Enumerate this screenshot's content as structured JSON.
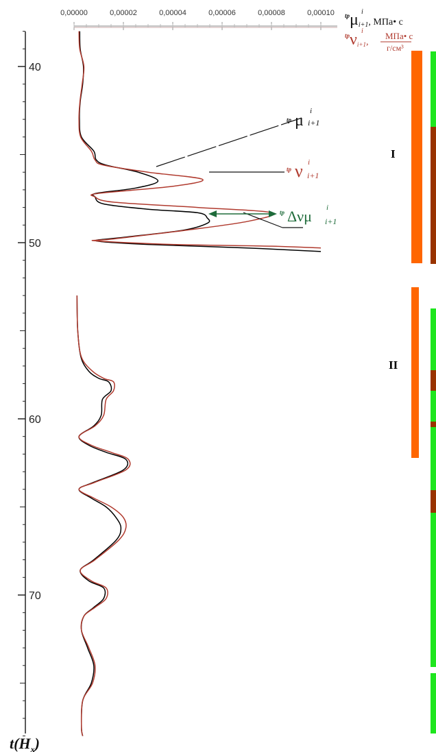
{
  "chart_data": {
    "type": "line",
    "x_axis": {
      "position": "top",
      "range": [
        0,
        0.0001
      ],
      "ticks": [
        0,
        2e-05,
        4e-05,
        6e-05,
        8e-05,
        0.0001
      ],
      "tick_labels": [
        "0,00000",
        "0,00002",
        "0,00004",
        "0,00006",
        "0,00008",
        "0,00010"
      ]
    },
    "y_axis": {
      "range": [
        38,
        78
      ],
      "inverted": true,
      "ticks": [
        40,
        50,
        60,
        70
      ],
      "tick_labels": [
        "40",
        "50",
        "60",
        "70"
      ],
      "label_main": "t",
      "label_sub": "(H",
      "label_subscript": "x",
      "label_tail": ")"
    },
    "x_labels": {
      "mu": {
        "prefix": "tp",
        "sup": "i",
        "symbol": "μ",
        "sub": "i+1",
        "unit": ", МПа• с"
      },
      "nu": {
        "prefix": "tp",
        "sup": "i",
        "symbol": "ν",
        "sub": "i+1",
        "sep": ", ",
        "unit_num": "МПа• с",
        "unit_den": "г/см³"
      }
    },
    "series": [
      {
        "label_prefix": "tp",
        "label_sup": "i",
        "label_symbol": "μ",
        "label_sub": "i+1",
        "color": "#000000",
        "points": [
          [
            2.3e-06,
            38
          ],
          [
            2.5e-06,
            39
          ],
          [
            3.8e-06,
            40
          ],
          [
            3.5e-06,
            41
          ],
          [
            2.5e-06,
            42
          ],
          [
            2.2e-06,
            43
          ],
          [
            3e-06,
            44
          ],
          [
            8e-06,
            44.8
          ],
          [
            9e-06,
            45.3
          ],
          [
            1.3e-05,
            45.6
          ],
          [
            2.6e-05,
            46.0
          ],
          [
            3.4e-05,
            46.5
          ],
          [
            2.5e-05,
            46.9
          ],
          [
            9e-06,
            47.2
          ],
          [
            8.5e-06,
            47.4
          ],
          [
            1.2e-05,
            47.8
          ],
          [
            3e-05,
            48.1
          ],
          [
            5e-05,
            48.3
          ],
          [
            5.4e-05,
            48.6
          ],
          [
            5.4e-05,
            48.9
          ],
          [
            4.4e-05,
            49.3
          ],
          [
            2e-05,
            49.7
          ],
          [
            9e-06,
            49.9
          ],
          [
            3e-05,
            50.1
          ],
          [
            7e-05,
            50.3
          ],
          [
            0.0001,
            50.5
          ]
        ]
      },
      {
        "label_prefix": "tp",
        "label_sup": "i",
        "label_symbol": "ν",
        "label_sub": "i+1",
        "color": "#b03a2e",
        "points": [
          [
            2e-06,
            38
          ],
          [
            2.3e-06,
            39
          ],
          [
            4e-06,
            40
          ],
          [
            3.3e-06,
            41
          ],
          [
            2.4e-06,
            42
          ],
          [
            2e-06,
            43
          ],
          [
            2.7e-06,
            44
          ],
          [
            7e-06,
            44.8
          ],
          [
            8.5e-06,
            45.3
          ],
          [
            1.2e-05,
            45.6
          ],
          [
            3e-05,
            46.0
          ],
          [
            5.2e-05,
            46.4
          ],
          [
            4e-05,
            46.8
          ],
          [
            1e-05,
            47.2
          ],
          [
            8.5e-06,
            47.4
          ],
          [
            1.6e-05,
            47.7
          ],
          [
            5e-05,
            48.0
          ],
          [
            8e-05,
            48.3
          ],
          [
            7e-05,
            48.8
          ],
          [
            4.5e-05,
            49.3
          ],
          [
            1.5e-05,
            49.8
          ],
          [
            9e-06,
            49.9
          ],
          [
            4e-05,
            50.1
          ],
          [
            8e-05,
            50.2
          ],
          [
            0.0001,
            50.3
          ]
        ]
      },
      {
        "color": "#000000",
        "points": [
          [
            1.2e-06,
            53
          ],
          [
            1.5e-06,
            55
          ],
          [
            2.8e-06,
            56.5
          ],
          [
            6e-06,
            57.3
          ],
          [
            1e-05,
            57.7
          ],
          [
            1.4e-05,
            57.9
          ],
          [
            1.5e-05,
            58.4
          ],
          [
            1.15e-05,
            58.9
          ],
          [
            1.1e-05,
            59.8
          ],
          [
            8e-06,
            60.4
          ],
          [
            2e-06,
            61
          ],
          [
            6e-06,
            61.5
          ],
          [
            1.3e-05,
            61.9
          ],
          [
            2.1e-05,
            62.3
          ],
          [
            2e-05,
            62.9
          ],
          [
            8e-06,
            63.6
          ],
          [
            2e-06,
            64
          ],
          [
            7e-06,
            64.5
          ],
          [
            1.3e-05,
            65
          ],
          [
            1.7e-05,
            65.6
          ],
          [
            1.9e-05,
            66.2
          ],
          [
            1.7e-05,
            66.9
          ],
          [
            8e-06,
            68.0
          ],
          [
            2.5e-06,
            68.6
          ],
          [
            6e-06,
            69.2
          ],
          [
            1.2e-05,
            69.6
          ],
          [
            1.2e-05,
            70.2
          ],
          [
            8e-06,
            70.7
          ],
          [
            4e-06,
            71.2
          ],
          [
            3e-06,
            72
          ],
          [
            5.5e-06,
            73
          ],
          [
            8e-06,
            74
          ],
          [
            7e-06,
            75
          ],
          [
            3.5e-06,
            76
          ],
          [
            3e-06,
            77.5
          ],
          [
            3.5e-06,
            78
          ]
        ]
      },
      {
        "color": "#b03a2e",
        "points": [
          [
            1.2e-06,
            53
          ],
          [
            1.5e-06,
            55
          ],
          [
            3e-06,
            56.5
          ],
          [
            7.5e-06,
            57.3
          ],
          [
            1.2e-05,
            57.7
          ],
          [
            1.6e-05,
            57.9
          ],
          [
            1.6e-05,
            58.4
          ],
          [
            1.3e-05,
            58.9
          ],
          [
            1.2e-05,
            59.8
          ],
          [
            8.5e-06,
            60.4
          ],
          [
            2e-06,
            61
          ],
          [
            7e-06,
            61.5
          ],
          [
            1.5e-05,
            61.9
          ],
          [
            2.2e-05,
            62.3
          ],
          [
            2.1e-05,
            62.9
          ],
          [
            8.5e-06,
            63.6
          ],
          [
            2e-06,
            64
          ],
          [
            8e-06,
            64.5
          ],
          [
            1.5e-05,
            65
          ],
          [
            2e-05,
            65.6
          ],
          [
            2.1e-05,
            66.2
          ],
          [
            1.8e-05,
            66.9
          ],
          [
            8.5e-06,
            68.0
          ],
          [
            2.5e-06,
            68.6
          ],
          [
            7e-06,
            69.2
          ],
          [
            1.3e-05,
            69.6
          ],
          [
            1.3e-05,
            70.2
          ],
          [
            8.5e-06,
            70.7
          ],
          [
            4e-06,
            71.2
          ],
          [
            3e-06,
            72
          ],
          [
            6e-06,
            73
          ],
          [
            8.5e-06,
            74
          ],
          [
            7.5e-06,
            75
          ],
          [
            3.5e-06,
            76
          ],
          [
            3e-06,
            77.5
          ],
          [
            3.5e-06,
            78
          ]
        ]
      }
    ],
    "annotations": {
      "delta": {
        "prefix": "tp",
        "sup": "i",
        "symbol": "Δνμ",
        "sub": "i+1",
        "color": "#1e6b3a"
      }
    },
    "zones": {
      "labels": [
        "I",
        "II"
      ]
    },
    "colors": {
      "orange_zone": "#ff6600",
      "collector_green": "#1ee61e",
      "collector_brown": "#993300",
      "series_black": "#000000",
      "series_red": "#b03a2e",
      "delta_green": "#1e6b3a"
    }
  }
}
